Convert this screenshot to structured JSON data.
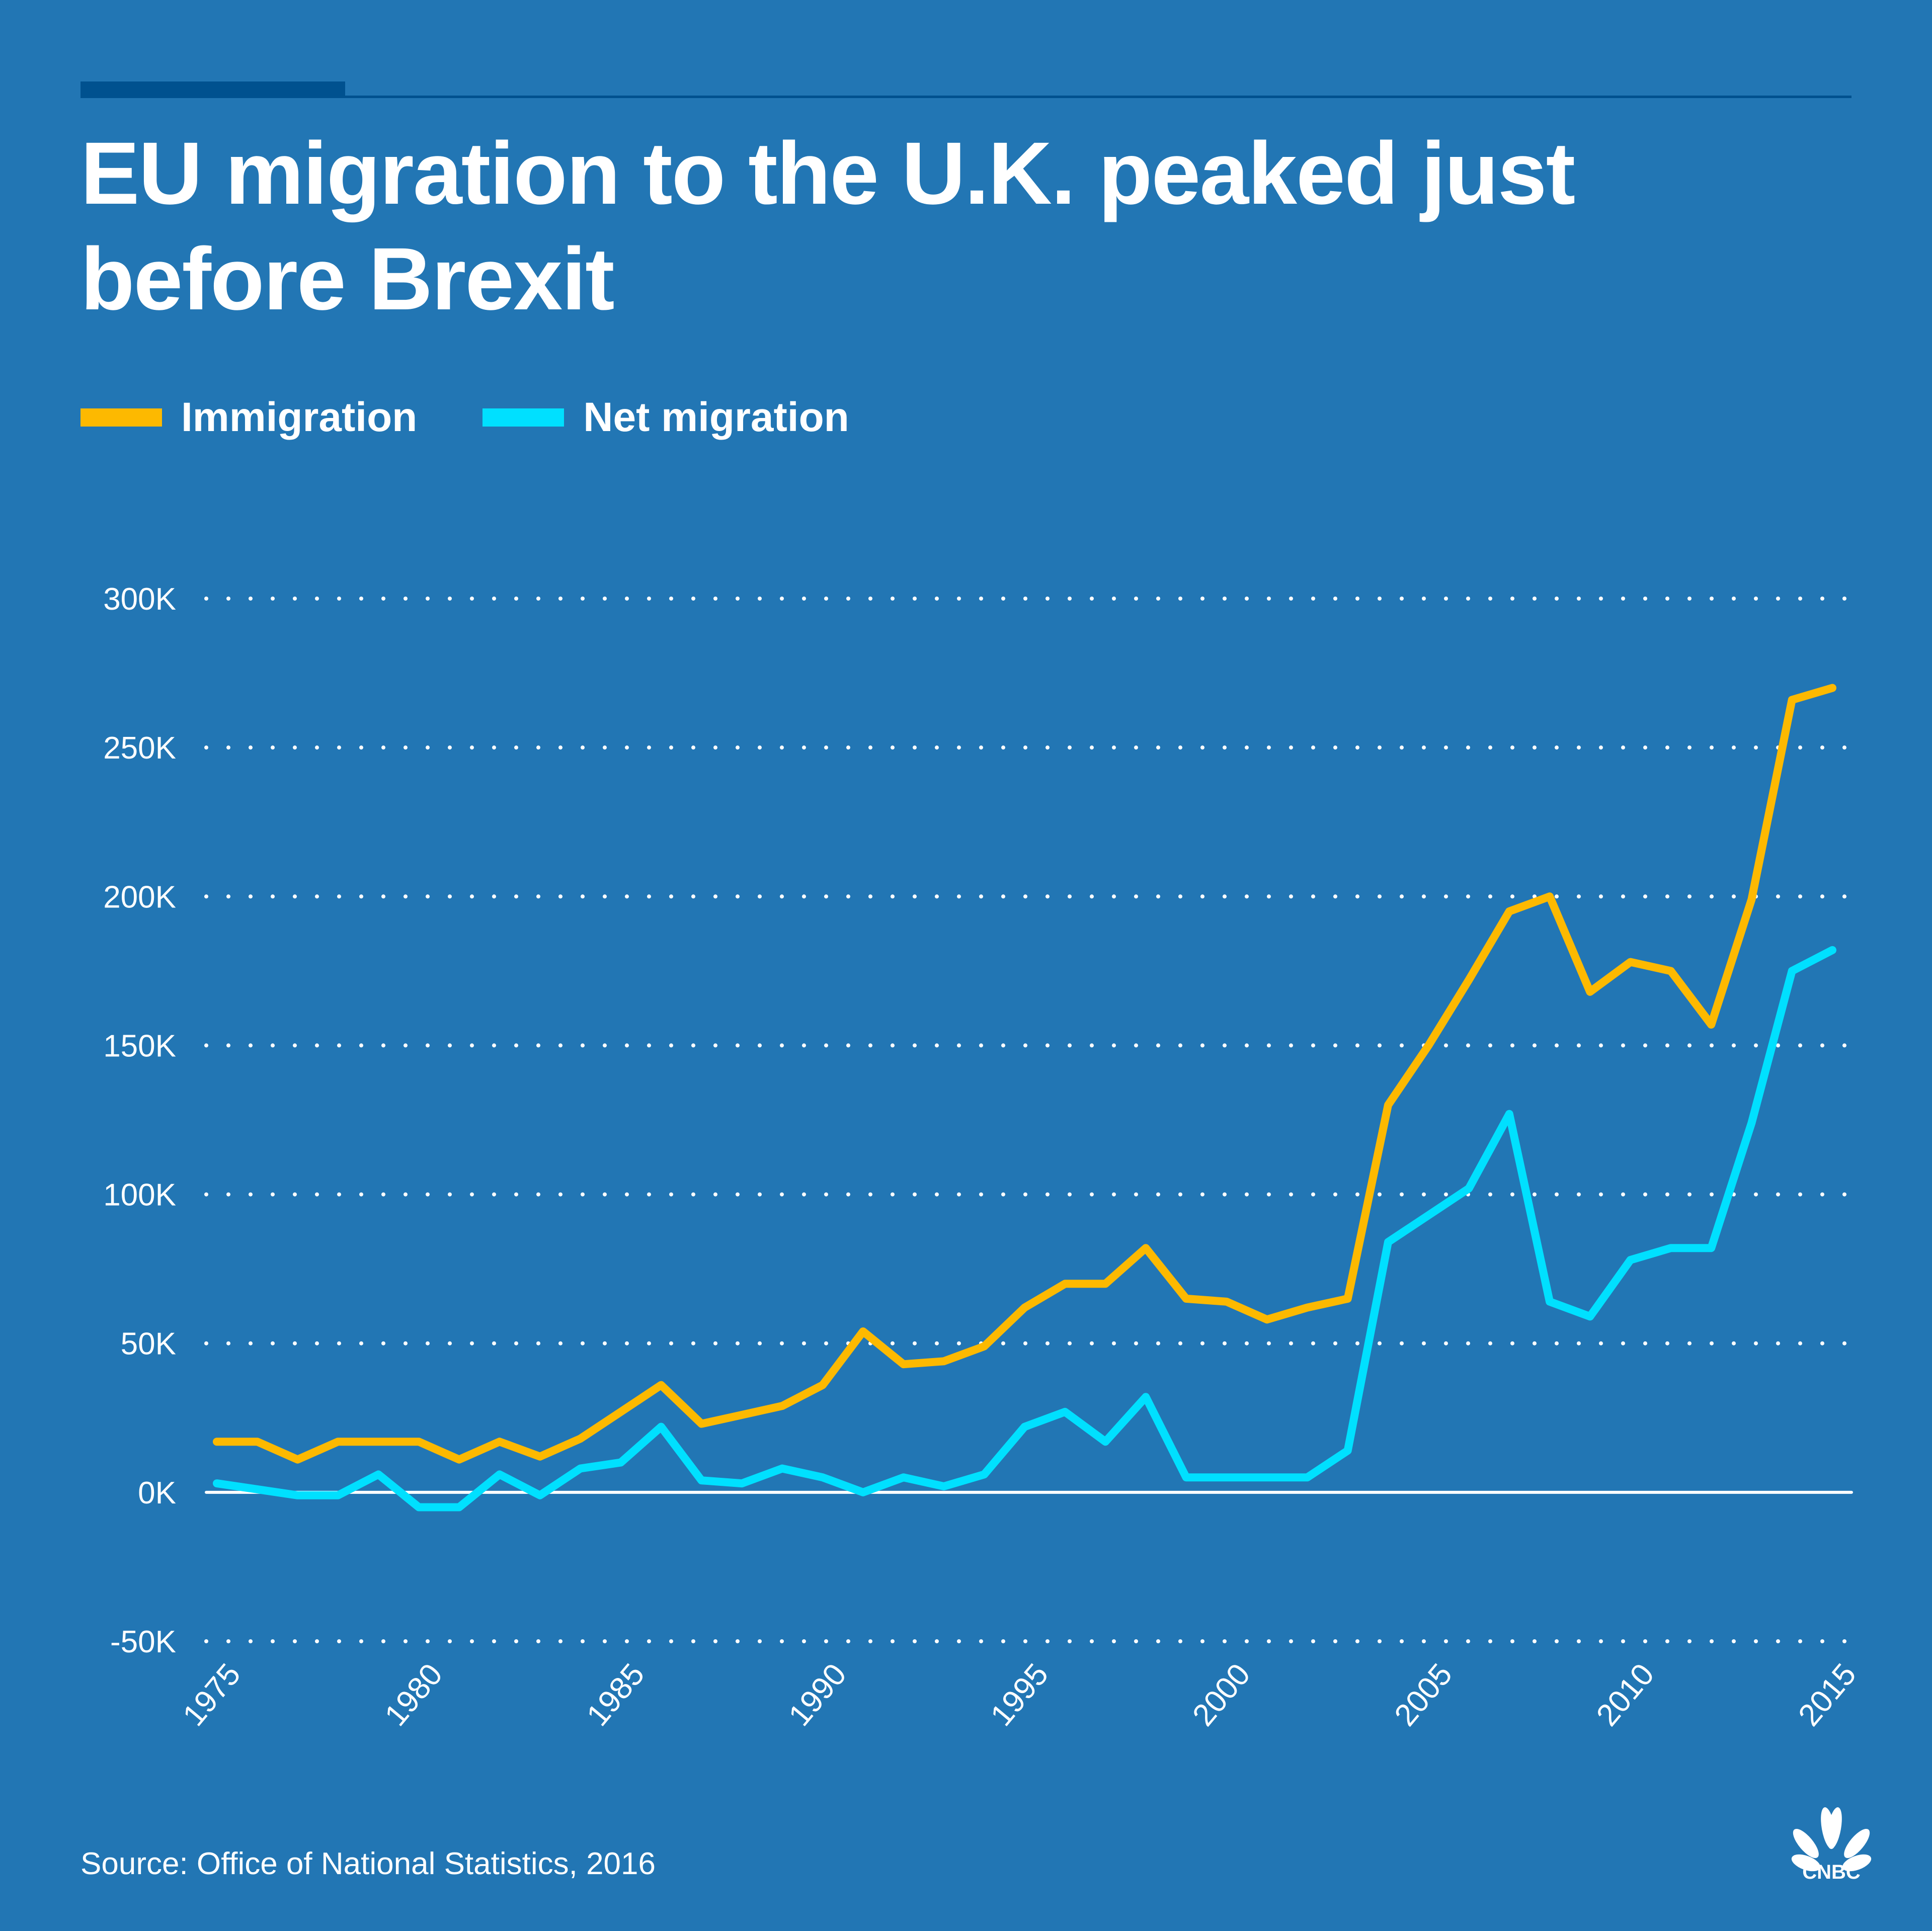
{
  "header": {
    "title": "EU migration to the U.K. peaked just before Brexit"
  },
  "footer": {
    "source": "Source: Office of National Statistics, 2016",
    "logo": "CNBC"
  },
  "colors": {
    "background": "#2276b4",
    "rule": "#00518f",
    "immigration": "#fdb900",
    "net_migration": "#00e0ff",
    "text": "#ffffff"
  },
  "chart_data": {
    "type": "line",
    "title": "EU migration to the U.K. peaked just before Brexit",
    "xlabel": "",
    "ylabel": "",
    "ylim": [
      -50000,
      300000
    ],
    "xlim": [
      1975,
      2015
    ],
    "grid": true,
    "legend_position": "top-left",
    "y_ticks": [
      {
        "value": 300000,
        "label": "300K"
      },
      {
        "value": 250000,
        "label": "250K"
      },
      {
        "value": 200000,
        "label": "200K"
      },
      {
        "value": 150000,
        "label": "150K"
      },
      {
        "value": 100000,
        "label": "100K"
      },
      {
        "value": 50000,
        "label": "50K"
      },
      {
        "value": 0,
        "label": "0K"
      },
      {
        "value": -50000,
        "label": "-50K"
      }
    ],
    "x_ticks": [
      {
        "value": 1975,
        "label": "1975"
      },
      {
        "value": 1980,
        "label": "1980"
      },
      {
        "value": 1985,
        "label": "1985"
      },
      {
        "value": 1990,
        "label": "1990"
      },
      {
        "value": 1995,
        "label": "1995"
      },
      {
        "value": 2000,
        "label": "2000"
      },
      {
        "value": 2005,
        "label": "2005"
      },
      {
        "value": 2010,
        "label": "2010"
      },
      {
        "value": 2015,
        "label": "2015"
      }
    ],
    "x": [
      1975,
      1976,
      1977,
      1978,
      1979,
      1980,
      1981,
      1982,
      1983,
      1984,
      1985,
      1986,
      1987,
      1988,
      1989,
      1990,
      1991,
      1992,
      1993,
      1994,
      1995,
      1996,
      1997,
      1998,
      1999,
      2000,
      2001,
      2002,
      2003,
      2004,
      2005,
      2006,
      2007,
      2008,
      2009,
      2010,
      2011,
      2012,
      2013,
      2014,
      2015
    ],
    "series": [
      {
        "name": "Immigration",
        "color": "#fdb900",
        "values": [
          17000,
          17000,
          11000,
          17000,
          17000,
          17000,
          11000,
          17000,
          12000,
          18000,
          27000,
          36000,
          23000,
          26000,
          29000,
          36000,
          54000,
          43000,
          44000,
          49000,
          62000,
          70000,
          70000,
          82000,
          65000,
          64000,
          58000,
          62000,
          65000,
          130000,
          150000,
          172000,
          195000,
          200000,
          168000,
          178000,
          175000,
          157000,
          199000,
          266000,
          270000
        ]
      },
      {
        "name": "Net migration",
        "color": "#00e0ff",
        "values": [
          3000,
          1000,
          -1000,
          -1000,
          6000,
          -5000,
          -5000,
          6000,
          -1000,
          8000,
          10000,
          22000,
          4000,
          3000,
          8000,
          5000,
          0,
          5000,
          2000,
          6000,
          22000,
          27000,
          17000,
          32000,
          5000,
          5000,
          5000,
          5000,
          14000,
          84000,
          93000,
          102000,
          127000,
          64000,
          59000,
          78000,
          82000,
          82000,
          124000,
          175000,
          182000
        ]
      }
    ]
  }
}
